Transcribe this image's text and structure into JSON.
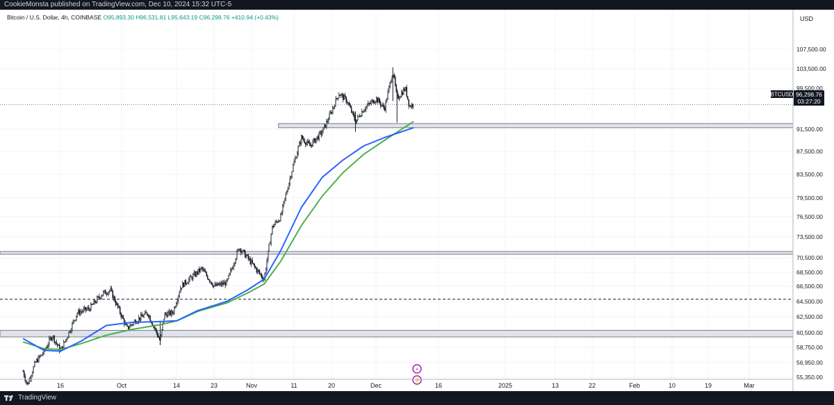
{
  "header": {
    "published_text": "CookieMonsta published on TradingView.com, Dec 10, 2024 15:32 UTC-5"
  },
  "legend": {
    "symbol_text": "Bitcoin / U.S. Dollar, 4h, COINBASE",
    "open": "O95,893.30",
    "high": "H96,531.81",
    "low": "L95,643.19",
    "close": "C96,298.76",
    "change": "+410.94 (+0.43%)"
  },
  "price_axis": {
    "currency": "USD",
    "ticks": [
      "107,500.00",
      "103,500.00",
      "99,500.00",
      "91,500.00",
      "87,500.00",
      "83,500.00",
      "79,500.00",
      "76,500.00",
      "73,500.00",
      "70,500.00",
      "68,500.00",
      "66,500.00",
      "64,500.00",
      "62,500.00",
      "60,500.00",
      "58,750.00",
      "56,950.00",
      "55,350.00"
    ],
    "price_tag": {
      "symbol": "BTCUSD",
      "price": "96,298.76",
      "countdown": "03:27:20",
      "value": 96298.76
    }
  },
  "time_axis": {
    "ticks": [
      "16",
      "Oct",
      "14",
      "23",
      "Nov",
      "11",
      "20",
      "Dec",
      "16",
      "2025",
      "13",
      "22",
      "Feb",
      "10",
      "19",
      "Mar"
    ]
  },
  "footer": {
    "brand": "TradingView"
  },
  "colors": {
    "up": "#131722",
    "ma_fast": "#2962ff",
    "ma_slow": "#4caf50",
    "zone_fill": "#e0e3eb",
    "zone_stroke": "#787b86"
  },
  "chart_data": {
    "type": "candlestick",
    "title": "Bitcoin / U.S. Dollar, 4h, COINBASE",
    "timeframe": "4h",
    "ylim": [
      54000,
      110000
    ],
    "price_path": [
      [
        "Sep 7",
        56000
      ],
      [
        "Sep 8",
        54500
      ],
      [
        "Sep 10",
        57000
      ],
      [
        "Sep 12",
        58200
      ],
      [
        "Sep 14",
        60200
      ],
      [
        "Sep 16",
        58300
      ],
      [
        "Sep 18",
        60500
      ],
      [
        "Sep 20",
        63000
      ],
      [
        "Sep 23",
        63600
      ],
      [
        "Sep 26",
        65500
      ],
      [
        "Sep 28",
        66000
      ],
      [
        "Sep 30",
        63500
      ],
      [
        "Oct 2",
        61000
      ],
      [
        "Oct 4",
        62000
      ],
      [
        "Oct 7",
        63000
      ],
      [
        "Oct 10",
        59500
      ],
      [
        "Oct 11",
        62800
      ],
      [
        "Oct 13",
        63000
      ],
      [
        "Oct 15",
        66500
      ],
      [
        "Oct 18",
        68000
      ],
      [
        "Oct 20",
        69000
      ],
      [
        "Oct 23",
        66500
      ],
      [
        "Oct 26",
        67000
      ],
      [
        "Oct 29",
        72000
      ],
      [
        "Oct 31",
        70500
      ],
      [
        "Nov 2",
        69000
      ],
      [
        "Nov 4",
        67500
      ],
      [
        "Nov 6",
        75000
      ],
      [
        "Nov 8",
        76500
      ],
      [
        "Nov 11",
        85000
      ],
      [
        "Nov 13",
        90000
      ],
      [
        "Nov 15",
        88500
      ],
      [
        "Nov 18",
        91000
      ],
      [
        "Nov 20",
        94500
      ],
      [
        "Nov 22",
        98500
      ],
      [
        "Nov 24",
        97000
      ],
      [
        "Nov 26",
        93000
      ],
      [
        "Nov 28",
        95500
      ],
      [
        "Dec 1",
        97500
      ],
      [
        "Dec 3",
        95500
      ],
      [
        "Dec 5",
        103000
      ],
      [
        "Dec 6",
        97500
      ],
      [
        "Dec 8",
        99500
      ],
      [
        "Dec 9",
        96000
      ],
      [
        "Dec 10",
        96298.76
      ]
    ],
    "ma_fast": [
      [
        "Sep 7",
        59800
      ],
      [
        "Sep 12",
        58400
      ],
      [
        "Sep 16",
        58300
      ],
      [
        "Sep 21",
        59500
      ],
      [
        "Sep 27",
        61400
      ],
      [
        "Oct 3",
        61800
      ],
      [
        "Oct 10",
        61900
      ],
      [
        "Oct 14",
        62000
      ],
      [
        "Oct 19",
        63300
      ],
      [
        "Oct 26",
        64500
      ],
      [
        "Oct 31",
        66000
      ],
      [
        "Nov 4",
        67500
      ],
      [
        "Nov 8",
        71500
      ],
      [
        "Nov 13",
        78000
      ],
      [
        "Nov 18",
        83000
      ],
      [
        "Nov 23",
        86000
      ],
      [
        "Nov 28",
        88500
      ],
      [
        "Dec 3",
        90000
      ],
      [
        "Dec 10",
        91800
      ]
    ],
    "ma_slow": [
      [
        "Sep 7",
        59400
      ],
      [
        "Sep 12",
        58600
      ],
      [
        "Sep 16",
        58500
      ],
      [
        "Sep 21",
        59200
      ],
      [
        "Sep 27",
        60200
      ],
      [
        "Oct 3",
        60900
      ],
      [
        "Oct 10",
        61500
      ],
      [
        "Oct 14",
        62000
      ],
      [
        "Oct 19",
        63200
      ],
      [
        "Oct 26",
        64300
      ],
      [
        "Oct 31",
        65600
      ],
      [
        "Nov 4",
        66800
      ],
      [
        "Nov 8",
        70000
      ],
      [
        "Nov 13",
        75200
      ],
      [
        "Nov 18",
        79800
      ],
      [
        "Nov 23",
        83800
      ],
      [
        "Nov 28",
        87000
      ],
      [
        "Dec 3",
        89500
      ],
      [
        "Dec 10",
        93000
      ]
    ],
    "zones": [
      {
        "from": "Nov 13",
        "to": "Mar",
        "low": 91800,
        "high": 92600
      },
      {
        "from": "Sep 7",
        "to": "Mar",
        "low": 71000,
        "high": 71400
      },
      {
        "from": "Sep 7",
        "to": "Mar",
        "low": 60000,
        "high": 60800
      }
    ],
    "hlines": [
      {
        "value": 64800,
        "style": "dashed"
      }
    ],
    "last_price_line": 96298.76
  }
}
